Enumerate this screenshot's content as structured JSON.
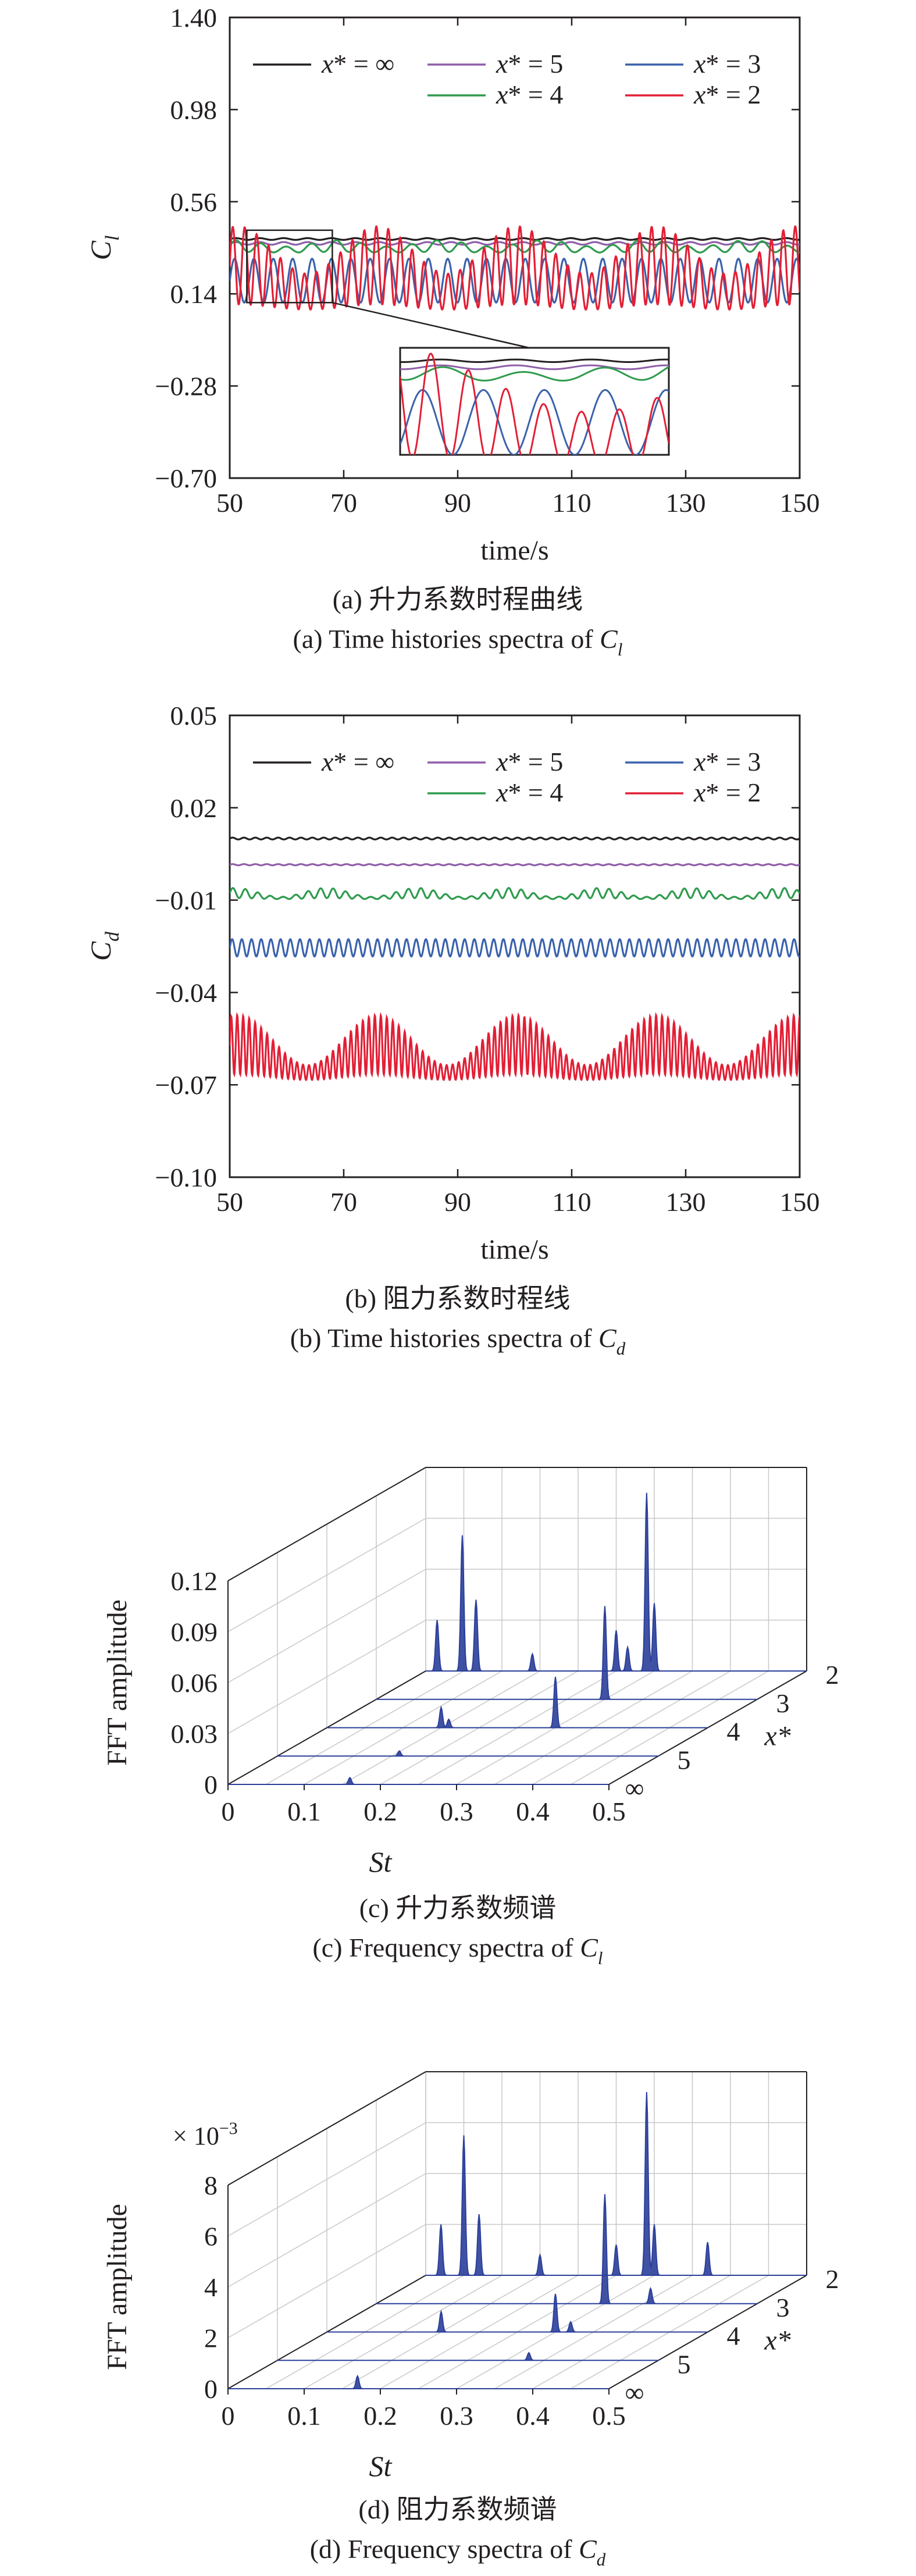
{
  "chart_data": [
    {
      "panel": "a",
      "type": "line",
      "caption_cn": "(a) 升力系数时程曲线",
      "caption_en_prefix": "(a) Time histories spectra of ",
      "caption_var": "C",
      "caption_sub": "l",
      "xlabel": "time/s",
      "ylabel": "C",
      "ylabel_sub": "l",
      "xlim": [
        50,
        150
      ],
      "ylim": [
        -0.7,
        1.4
      ],
      "xticks": [
        50,
        70,
        90,
        110,
        130,
        150
      ],
      "yticks": [
        -0.7,
        -0.28,
        0.14,
        0.56,
        0.98,
        1.4
      ],
      "ytick_labels": [
        "−0.70",
        "−0.28",
        "0.14",
        "0.56",
        "0.98",
        "1.40"
      ],
      "grid": false,
      "legend_position": "top",
      "inset": {
        "zoom_x": [
          53,
          68
        ],
        "zoom_y": [
          0.1,
          0.43
        ],
        "present": true
      },
      "series": [
        {
          "name": "x* = ∞",
          "color": "#231f20",
          "mean": 0.39,
          "amp1": 0.004,
          "period1": 4.2,
          "amp2": 0,
          "period2": 20
        },
        {
          "name": "x* = 5",
          "color": "#8f5ea8",
          "mean": 0.37,
          "amp1": 0.006,
          "period1": 4.2,
          "amp2": 0,
          "period2": 20
        },
        {
          "name": "x* = 4",
          "color": "#2e9b4d",
          "mean": 0.35,
          "amp1": 0.02,
          "period1": 4.4,
          "amp2": 0.008,
          "period2": 18
        },
        {
          "name": "x* = 3",
          "color": "#3a62ac",
          "mean": 0.2,
          "amp1": 0.1,
          "period1": 3.4,
          "amp2": 0,
          "period2": 20
        },
        {
          "name": "x* = 2",
          "color": "#e21f35",
          "mean": 0.21,
          "amp1": 0.13,
          "period1": 2.1,
          "amp2": 0.06,
          "period2": 24.5
        }
      ]
    },
    {
      "panel": "b",
      "type": "line",
      "caption_cn": "(b) 阻力系数时程线",
      "caption_en_prefix": "(b) Time histories spectra of ",
      "caption_var": "C",
      "caption_sub": "d",
      "xlabel": "time/s",
      "ylabel": "C",
      "ylabel_sub": "d",
      "xlim": [
        50,
        150
      ],
      "ylim": [
        -0.1,
        0.05
      ],
      "xticks": [
        50,
        70,
        90,
        110,
        130,
        150
      ],
      "yticks": [
        -0.1,
        -0.07,
        -0.04,
        -0.01,
        0.02,
        0.05
      ],
      "ytick_labels": [
        "−0.10",
        "−0.07",
        "−0.04",
        "−0.01",
        "0.02",
        "0.05"
      ],
      "grid": false,
      "legend_position": "top",
      "series": [
        {
          "name": "x* = ∞",
          "color": "#231f20",
          "mean": 0.01,
          "amp1": 0.0003,
          "period1": 2.0,
          "amp2": 0,
          "period2": 20
        },
        {
          "name": "x* = 5",
          "color": "#8f5ea8",
          "mean": 0.0015,
          "amp1": 0.0002,
          "period1": 2.0,
          "amp2": 0,
          "period2": 20
        },
        {
          "name": "x* = 4",
          "color": "#2e9b4d",
          "mean": -0.0085,
          "amp1": 0.001,
          "period1": 2.2,
          "amp2": 0.0008,
          "period2": 16
        },
        {
          "name": "x* = 3",
          "color": "#3a62ac",
          "mean": -0.0255,
          "amp1": 0.0028,
          "period1": 1.7,
          "amp2": 0,
          "period2": 20
        },
        {
          "name": "x* = 2",
          "color": "#e21f35",
          "mean": -0.0615,
          "amp1": 0.006,
          "period1": 1.05,
          "amp2": 0.0045,
          "period2": 24.5
        }
      ]
    },
    {
      "panel": "c",
      "type": "waterfall",
      "caption_cn": "(c) 升力系数频谱",
      "caption_en_prefix": "(c) Frequency spectra of ",
      "caption_var": "C",
      "caption_sub": "l",
      "xlabel": "St",
      "ylabel": "FFT amplitude",
      "zlabel": "x*",
      "xlim": [
        0,
        0.5
      ],
      "zlim": [
        0,
        0.12
      ],
      "xtick_labels": [
        "0",
        "0.1",
        "0.2",
        "0.3",
        "0.4",
        "0.5"
      ],
      "ztick_labels": [
        "0",
        "0.03",
        "0.06",
        "0.09",
        "0.12"
      ],
      "ztick_values": [
        0,
        0.03,
        0.06,
        0.09,
        0.12
      ],
      "slice_labels": [
        "∞",
        "5",
        "4",
        "3",
        "2"
      ],
      "scale_note": "",
      "color": "#2b3f9a",
      "grid": true,
      "series": [
        {
          "name": "∞",
          "peaks": [
            [
              0.16,
              0.004
            ]
          ]
        },
        {
          "name": "5",
          "peaks": [
            [
              0.16,
              0.003
            ]
          ]
        },
        {
          "name": "4",
          "peaks": [
            [
              0.15,
              0.012
            ],
            [
              0.3,
              0.03
            ],
            [
              0.16,
              0.005
            ]
          ]
        },
        {
          "name": "3",
          "peaks": [
            [
              0.3,
              0.055
            ]
          ]
        },
        {
          "name": "2",
          "peaks": [
            [
              0.015,
              0.03
            ],
            [
              0.048,
              0.08
            ],
            [
              0.066,
              0.042
            ],
            [
              0.14,
              0.01
            ],
            [
              0.25,
              0.024
            ],
            [
              0.265,
              0.014
            ],
            [
              0.29,
              0.105
            ],
            [
              0.3,
              0.04
            ]
          ]
        }
      ]
    },
    {
      "panel": "d",
      "type": "waterfall",
      "caption_cn": "(d) 阻力系数频谱",
      "caption_en_prefix": "(d) Frequency spectra of ",
      "caption_var": "C",
      "caption_sub": "d",
      "xlabel": "St",
      "ylabel": "FFT amplitude",
      "zlabel": "x*",
      "xlim": [
        0,
        0.5
      ],
      "zlim": [
        0,
        8
      ],
      "xtick_labels": [
        "0",
        "0.1",
        "0.2",
        "0.3",
        "0.4",
        "0.5"
      ],
      "ztick_labels": [
        "0",
        "2",
        "4",
        "6",
        "8"
      ],
      "ztick_values": [
        0,
        2,
        4,
        6,
        8
      ],
      "slice_labels": [
        "∞",
        "5",
        "4",
        "3",
        "2"
      ],
      "scale_note": "× 10",
      "scale_exp": "−3",
      "color": "#2b3f9a",
      "grid": true,
      "series": [
        {
          "name": "∞",
          "peaks": [
            [
              0.17,
              0.5
            ]
          ]
        },
        {
          "name": "5",
          "peaks": [
            [
              0.33,
              0.3
            ]
          ]
        },
        {
          "name": "4",
          "peaks": [
            [
              0.15,
              0.8
            ],
            [
              0.3,
              1.5
            ],
            [
              0.32,
              0.4
            ]
          ]
        },
        {
          "name": "3",
          "peaks": [
            [
              0.3,
              4.3
            ],
            [
              0.36,
              0.6
            ]
          ]
        },
        {
          "name": "2",
          "peaks": [
            [
              0.02,
              2.0
            ],
            [
              0.05,
              5.5
            ],
            [
              0.07,
              2.4
            ],
            [
              0.15,
              0.8
            ],
            [
              0.25,
              1.2
            ],
            [
              0.29,
              7.2
            ],
            [
              0.3,
              2.0
            ],
            [
              0.37,
              1.3
            ]
          ]
        }
      ]
    }
  ]
}
